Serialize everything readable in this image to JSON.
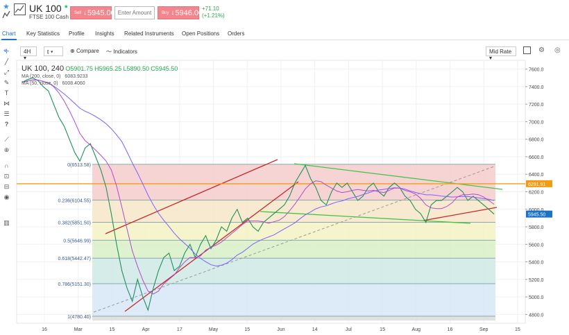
{
  "header": {
    "symbol": "UK 100",
    "subtitle": "FTSE 100 Cash",
    "sell_label": "Sell",
    "sell_price": "5945.00",
    "amount_placeholder": "Enter Amount",
    "buy_label": "Buy",
    "buy_price": "5946.00",
    "change_abs": "+71.10",
    "change_pct": "(+1.21%)",
    "colors": {
      "sell": "#f2868c",
      "buy": "#f2868c",
      "positive": "#2aa84f",
      "accent": "#1a73c8"
    }
  },
  "tabs": [
    {
      "label": "Chart",
      "active": true
    },
    {
      "label": "Key Statistics"
    },
    {
      "label": "Profile"
    },
    {
      "label": "Insights"
    },
    {
      "label": "Related Instruments"
    },
    {
      "label": "Open Positions"
    },
    {
      "label": "Orders"
    }
  ],
  "toolbar": {
    "interval": "4H",
    "compare_label": "Compare",
    "indicators_label": "Indicators",
    "price_type": "Mid Rate"
  },
  "tool_icons": [
    "crosshair-icon",
    "line-tool-icon",
    "ray-tool-icon",
    "brush-tool-icon",
    "text-tool-icon",
    "pattern-tool-icon",
    "fib-tool-icon",
    "question-icon",
    "ruler-icon",
    "zoom-icon",
    "magnet-icon",
    "lock-icon",
    "lock-all-icon",
    "eye-icon",
    "trash-icon"
  ],
  "legend": {
    "symbol": "UK 100, 240",
    "open": "O5901.75",
    "high": "H5965.25",
    "low": "L5890.50",
    "close": "C5945.50",
    "ma1_label": "MA (200, close, 0)",
    "ma1_value": "6083.9233",
    "ma2_label": "MA (50, close, 0)",
    "ma2_value": "6008.4060"
  },
  "chart_data": {
    "type": "line",
    "title": "UK 100, 240",
    "x_ticks": [
      "16",
      "Mar",
      "15",
      "Apr",
      "17",
      "May",
      "15",
      "Jun",
      "14",
      "Jul",
      "15",
      "Aug",
      "16",
      "Sep",
      "15"
    ],
    "y_ticks": [
      7600,
      7400,
      7200,
      7000,
      6800,
      6600,
      6400,
      6200,
      6000,
      5800,
      5600,
      5400,
      5200,
      5000,
      4800
    ],
    "ylim": [
      4700,
      7700
    ],
    "grid": true,
    "series": [
      {
        "values": [
          7450,
          7480,
          7500,
          7470,
          7400,
          7350,
          7200,
          7050,
          6950,
          6800,
          6650,
          6550,
          6700,
          6750,
          6600,
          6450,
          6250,
          5950,
          5600,
          5300,
          5100,
          4950,
          5200,
          5000,
          4850,
          5100,
          5300,
          5450,
          5500,
          5300,
          5350,
          5500,
          5600,
          5450,
          5600,
          5700,
          5550,
          5650,
          5800,
          5750,
          5900,
          6000,
          5850,
          5900,
          5800,
          5750,
          5850,
          5900,
          5950,
          6000,
          6050,
          6150,
          6300,
          6400,
          6500,
          6350,
          6250,
          6100,
          6050,
          6200,
          6300,
          6250,
          6300,
          6200,
          6100,
          6150,
          6250,
          6300,
          6200,
          6150,
          6250,
          6300,
          6250,
          6150,
          6100,
          6000,
          5950,
          5850,
          6050,
          6100,
          6100,
          6150,
          6200,
          6250,
          6200,
          6100,
          6150,
          6100,
          6050,
          6000,
          5945
        ]
      },
      {
        "name": "MA (200, close, 0)",
        "color": "#7b61ff"
      },
      {
        "name": "MA (50, close, 0)",
        "color": "#b04cc9"
      }
    ],
    "fib_levels": [
      {
        "label": "0(6513.58)",
        "value": 6513.58,
        "color": "#f4cccc"
      },
      {
        "label": "0.236(6104.55)",
        "value": 6104.55,
        "color": "#f6e6c8"
      },
      {
        "label": "0.382(5851.50)",
        "value": 5851.5,
        "color": "#f3f2c4"
      },
      {
        "label": "0.5(5646.99)",
        "value": 5646.99,
        "color": "#d8f0c8"
      },
      {
        "label": "0.618(5442.47)",
        "value": 5442.47,
        "color": "#cfe9e4"
      },
      {
        "label": "0.786(5151.30)",
        "value": 5151.3,
        "color": "#d7e6f7"
      },
      {
        "label": "1(4780.40)",
        "value": 4780.4,
        "color": "#dcdcdc"
      }
    ],
    "price_labels": [
      {
        "text": "6291.91",
        "value": 6291.91,
        "color": "#f39c12"
      },
      {
        "text": "5945.50",
        "value": 5945.5,
        "color": "#1a73c8"
      }
    ]
  }
}
